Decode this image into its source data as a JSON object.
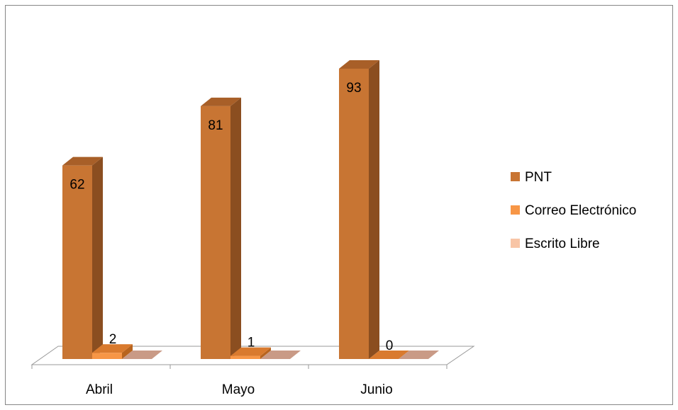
{
  "chart_data": {
    "type": "bar",
    "style": "3d-clustered-column",
    "categories": [
      "Abril",
      "Mayo",
      "Junio"
    ],
    "series": [
      {
        "name": "PNT",
        "values": [
          62,
          81,
          93
        ],
        "color": "#C87533",
        "side_color": "#8B4E20",
        "top_color": "#A85F28",
        "show_labels": true
      },
      {
        "name": "Correo Electrónico",
        "values": [
          2,
          1,
          0
        ],
        "color": "#F79646",
        "side_color": "#B8641E",
        "top_color": "#D97A2E",
        "show_labels": true
      },
      {
        "name": "Escrito Libre",
        "values": [
          0,
          0,
          0
        ],
        "color": "#F8C5A6",
        "side_color": "#B98E78",
        "top_color": "#C99A86",
        "show_labels": false
      }
    ],
    "title": "",
    "xlabel": "",
    "ylabel": "",
    "ylim": [
      0,
      100
    ],
    "grid": false,
    "legend": "right"
  }
}
